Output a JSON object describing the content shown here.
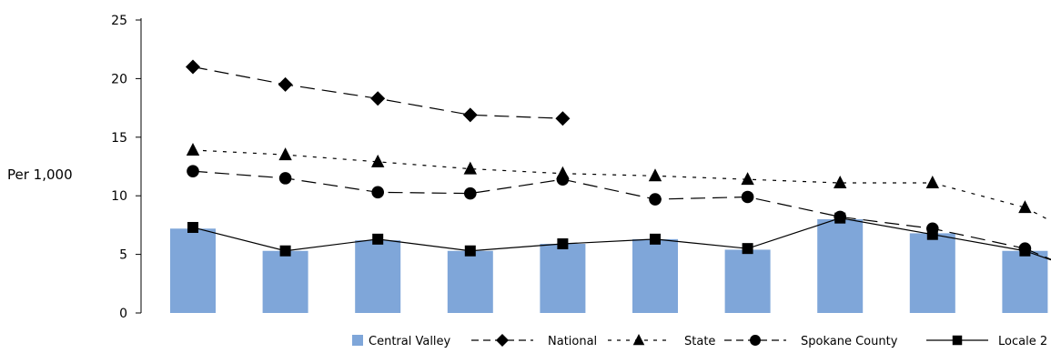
{
  "chart_data": {
    "type": "bar",
    "title": "",
    "xlabel": "",
    "ylabel": "Per 1,000",
    "ylim": [
      0,
      25
    ],
    "yticks": [
      0,
      5,
      10,
      15,
      20,
      25
    ],
    "grid": false,
    "legend_position": "bottom-right",
    "x": [
      1,
      2,
      3,
      4,
      5,
      6,
      7,
      8,
      9,
      10
    ],
    "series": [
      {
        "name": "Central Valley",
        "kind": "bar",
        "color": "#7fa6d9",
        "values": [
          7.2,
          5.3,
          6.2,
          5.3,
          5.9,
          6.3,
          5.4,
          8.0,
          6.8,
          5.3
        ]
      },
      {
        "name": "National",
        "kind": "line",
        "marker": "diamond",
        "dash": "long-dash",
        "color": "#000000",
        "values": [
          21.0,
          19.5,
          18.3,
          16.9,
          16.6,
          null,
          null,
          null,
          null,
          null
        ]
      },
      {
        "name": "State",
        "kind": "line",
        "marker": "triangle",
        "dash": "dotted",
        "color": "#000000",
        "values": [
          13.9,
          13.5,
          12.9,
          12.3,
          11.9,
          11.7,
          11.4,
          11.1,
          11.1,
          9.0
        ]
      },
      {
        "name": "Spokane County",
        "kind": "line",
        "marker": "circle",
        "dash": "long-dash",
        "color": "#000000",
        "values": [
          12.1,
          11.5,
          10.3,
          10.2,
          11.4,
          9.7,
          9.9,
          8.2,
          7.2,
          5.5
        ]
      },
      {
        "name": "Locale 2",
        "kind": "line",
        "marker": "square",
        "dash": "solid",
        "color": "#000000",
        "values": [
          7.3,
          5.3,
          6.3,
          5.3,
          5.9,
          6.3,
          5.5,
          8.1,
          6.7,
          5.3
        ]
      }
    ]
  }
}
